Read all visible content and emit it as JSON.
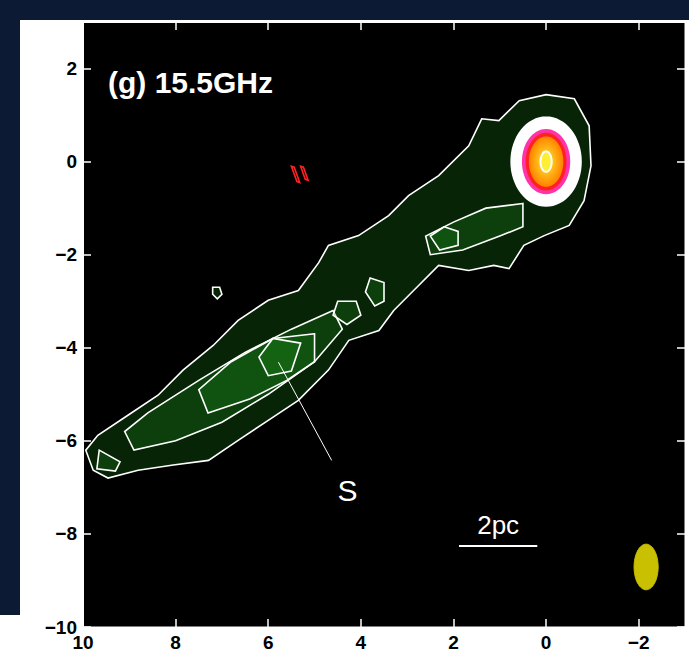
{
  "chart_data": {
    "type": "contour",
    "title": "(g) 15.5GHz",
    "xlim": [
      10,
      -3
    ],
    "ylim": [
      -10,
      3
    ],
    "xticks": [
      10,
      8,
      6,
      4,
      2,
      0,
      {
        "value": -2,
        "label": "−2"
      }
    ],
    "yticks": [
      2,
      0,
      {
        "value": -2,
        "label": "−2"
      },
      {
        "value": -4,
        "label": "−4"
      },
      {
        "value": -6,
        "label": "−6"
      },
      {
        "value": -8,
        "label": "−8"
      },
      {
        "value": -10,
        "label": "−10"
      }
    ],
    "grid": false,
    "contours": [
      {
        "color": "#ffffff",
        "points": [
          [
            0,
            1.44
          ],
          [
            -0.61,
            1.35
          ],
          [
            -0.93,
            0.77
          ],
          [
            -0.97,
            -0.09
          ],
          [
            -0.82,
            -0.84
          ],
          [
            -0.5,
            -1.37
          ],
          [
            0.04,
            -1.59
          ],
          [
            0.48,
            -1.8
          ],
          [
            0.8,
            -2.3
          ],
          [
            1.13,
            -2.23
          ],
          [
            1.67,
            -2.34
          ],
          [
            2.32,
            -2.23
          ],
          [
            2.86,
            -2.77
          ],
          [
            3.29,
            -3.2
          ],
          [
            3.61,
            -3.63
          ],
          [
            4.26,
            -3.84
          ],
          [
            4.7,
            -4.48
          ],
          [
            5.35,
            -5.13
          ],
          [
            6.0,
            -5.56
          ],
          [
            6.65,
            -5.99
          ],
          [
            7.29,
            -6.42
          ],
          [
            8.05,
            -6.52
          ],
          [
            8.81,
            -6.63
          ],
          [
            9.46,
            -6.8
          ],
          [
            9.78,
            -6.63
          ],
          [
            9.94,
            -6.2
          ],
          [
            9.68,
            -5.88
          ],
          [
            9.03,
            -5.45
          ],
          [
            8.38,
            -5.02
          ],
          [
            7.84,
            -4.48
          ],
          [
            7.19,
            -3.95
          ],
          [
            6.65,
            -3.41
          ],
          [
            6.0,
            -2.98
          ],
          [
            5.35,
            -2.77
          ],
          [
            4.91,
            -2.17
          ],
          [
            4.7,
            -1.8
          ],
          [
            4.05,
            -1.59
          ],
          [
            3.4,
            -1.16
          ],
          [
            2.97,
            -0.73
          ],
          [
            2.32,
            -0.3
          ],
          [
            1.67,
            0.34
          ],
          [
            1.39,
            0.92
          ],
          [
            1.02,
            0.88
          ],
          [
            0.58,
            1.31
          ]
        ]
      },
      {
        "color": "#ffffff",
        "points": [
          [
            4.6,
            -3.2
          ],
          [
            5.5,
            -3.6
          ],
          [
            6.5,
            -4.1
          ],
          [
            7.5,
            -4.7
          ],
          [
            8.6,
            -5.4
          ],
          [
            9.1,
            -5.8
          ],
          [
            8.9,
            -6.2
          ],
          [
            8.0,
            -6.0
          ],
          [
            7.0,
            -5.6
          ],
          [
            6.0,
            -5.0
          ],
          [
            5.0,
            -4.3
          ],
          [
            4.4,
            -3.6
          ]
        ]
      },
      {
        "color": "#ffffff",
        "points": [
          [
            5.0,
            -3.7
          ],
          [
            5.9,
            -3.8
          ],
          [
            6.8,
            -4.3
          ],
          [
            7.5,
            -4.9
          ],
          [
            7.3,
            -5.4
          ],
          [
            6.4,
            -5.1
          ],
          [
            5.6,
            -4.7
          ],
          [
            5.0,
            -4.3
          ]
        ]
      },
      {
        "color": "#ffffff",
        "points": [
          [
            5.3,
            -3.9
          ],
          [
            5.9,
            -3.8
          ],
          [
            6.2,
            -4.2
          ],
          [
            6.0,
            -4.6
          ],
          [
            5.5,
            -4.5
          ]
        ]
      },
      {
        "color": "#ffffff",
        "points": [
          [
            4.5,
            -3.0
          ],
          [
            4.1,
            -3.0
          ],
          [
            4.0,
            -3.3
          ],
          [
            4.3,
            -3.5
          ],
          [
            4.6,
            -3.3
          ]
        ]
      },
      {
        "color": "#ffffff",
        "points": [
          [
            3.8,
            -2.5
          ],
          [
            3.5,
            -2.6
          ],
          [
            3.5,
            -3.0
          ],
          [
            3.7,
            -3.1
          ],
          [
            3.9,
            -2.8
          ]
        ]
      },
      {
        "color": "#ffffff",
        "points": [
          [
            0.5,
            -0.9
          ],
          [
            1.3,
            -1.0
          ],
          [
            2.0,
            -1.3
          ],
          [
            2.6,
            -1.6
          ],
          [
            2.5,
            -2.0
          ],
          [
            1.8,
            -1.9
          ],
          [
            1.0,
            -1.6
          ],
          [
            0.5,
            -1.4
          ]
        ]
      },
      {
        "color": "#ffffff",
        "points": [
          [
            2.2,
            -1.4
          ],
          [
            2.5,
            -1.6
          ],
          [
            2.3,
            -1.9
          ],
          [
            1.9,
            -1.8
          ],
          [
            1.9,
            -1.5
          ]
        ]
      },
      {
        "color": "#ffffff",
        "points": [
          [
            7.2,
            -2.7
          ],
          [
            7.05,
            -2.7
          ],
          [
            7.0,
            -2.85
          ],
          [
            7.1,
            -2.95
          ],
          [
            7.2,
            -2.85
          ]
        ]
      },
      {
        "color": "#ffffff",
        "points": [
          [
            9.65,
            -6.2
          ],
          [
            9.2,
            -6.45
          ],
          [
            9.3,
            -6.65
          ],
          [
            9.7,
            -6.6
          ]
        ]
      },
      {
        "color": "#ff2222",
        "points": [
          [
            5.5,
            -0.1
          ],
          [
            5.44,
            -0.12
          ],
          [
            5.32,
            -0.45
          ],
          [
            5.38,
            -0.43
          ]
        ]
      },
      {
        "color": "#ff2222",
        "points": [
          [
            5.3,
            -0.1
          ],
          [
            5.24,
            -0.12
          ],
          [
            5.14,
            -0.4
          ],
          [
            5.2,
            -0.38
          ]
        ]
      }
    ],
    "core": {
      "x": 0,
      "y": 0,
      "levels": [
        {
          "rx": 0.75,
          "ry": 0.95,
          "color": "#ffffff"
        },
        {
          "rx": 0.62,
          "ry": 0.8,
          "color": "#ffffff"
        },
        {
          "rx": 0.5,
          "ry": 0.68,
          "color": "#ff33aa"
        },
        {
          "rx": 0.42,
          "ry": 0.6,
          "color": "#ff2222"
        },
        {
          "rx": 0.35,
          "ry": 0.52,
          "color": "#ff8800"
        },
        {
          "rx": 0.12,
          "ry": 0.22,
          "color": "#ffffff"
        }
      ]
    },
    "beam": {
      "x": -2.16,
      "y": -8.71,
      "width": 0.52,
      "height": 0.98,
      "color": "#c8c000"
    },
    "scale_bar": {
      "label": "2pc",
      "x": [
        1.88,
        0.19
      ],
      "y": -8.26
    },
    "annotations": [
      {
        "text": "S",
        "x": 4.29,
        "y": -7.06,
        "from": [
          5.78,
          -4.31
        ],
        "to": [
          4.63,
          -6.42
        ]
      }
    ]
  }
}
